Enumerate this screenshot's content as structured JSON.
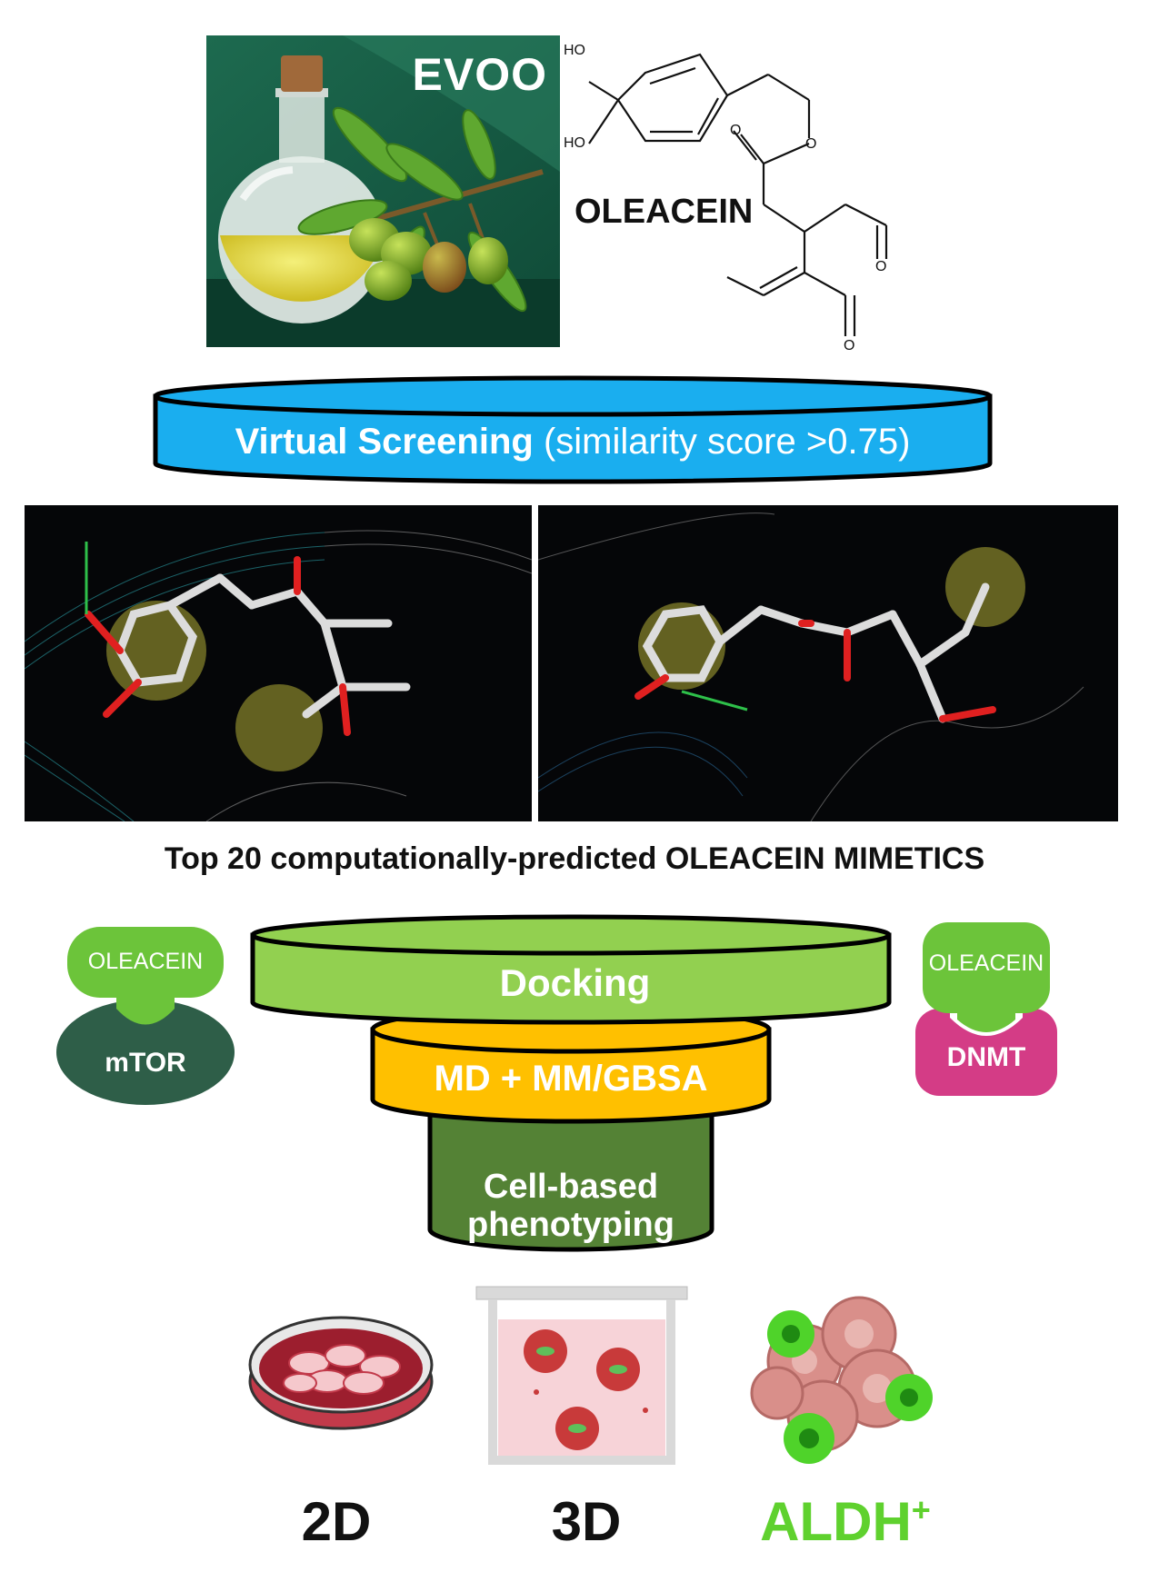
{
  "evoo": {
    "title": "EVOO"
  },
  "molecule": {
    "name": "OLEACEIN",
    "atoms": {
      "ho_top": "HO",
      "ho_bottom": "HO",
      "o_ring": "O",
      "o_carbonyl": "O",
      "o_ring2": "O",
      "o_ald1": "O",
      "o_ald2": "O"
    }
  },
  "screening": {
    "bold": "Virtual Screening",
    "rest": " (similarity score >0.75)",
    "color": "#1aaeef"
  },
  "mimetics_caption": "Top 20 computationally-predicted OLEACEIN MIMETICS",
  "targets": {
    "left": {
      "ligand": "OLEACEIN",
      "target": "mTOR",
      "ligand_color": "#6cc43a",
      "target_color": "#2e5e48"
    },
    "right": {
      "ligand": "OLEACEIN",
      "target": "DNMT",
      "ligand_color": "#6cc43a",
      "target_color": "#d43c86"
    }
  },
  "funnel": {
    "docking": "Docking",
    "md": "MD + MM/GBSA",
    "cell_line1": "Cell-based",
    "cell_line2": "phenotyping",
    "colors": {
      "docking": "#92d050",
      "md": "#ffc000",
      "cell": "#548235"
    }
  },
  "models": {
    "two_d": "2D",
    "three_d": "3D",
    "aldh": "ALDH",
    "aldh_sup": "+",
    "aldh_color": "#5fd12e"
  }
}
